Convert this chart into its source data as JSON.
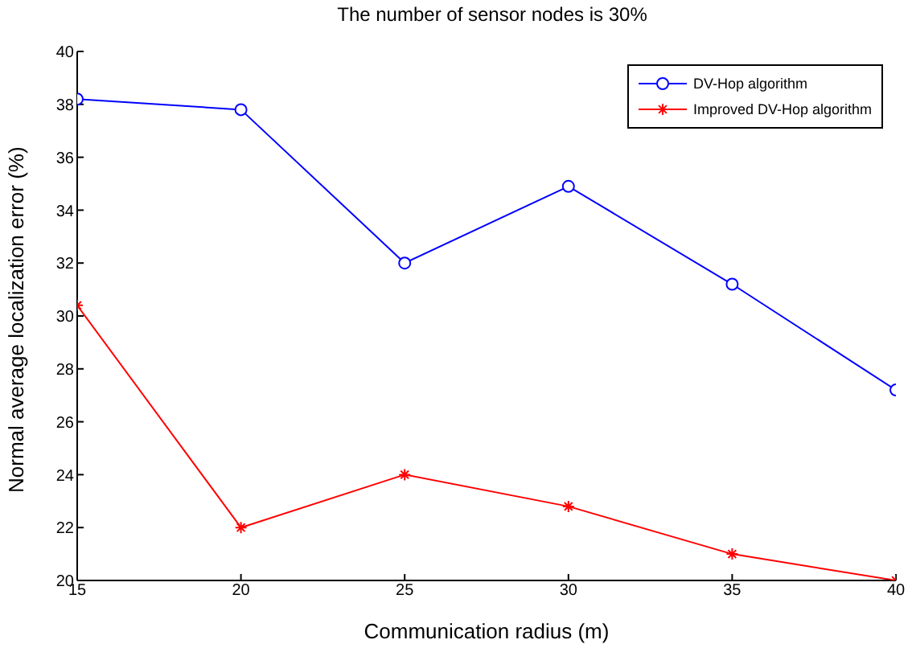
{
  "chart_data": {
    "type": "line",
    "title": "The number of sensor nodes is 30%",
    "xlabel": "Communication radius (m)",
    "ylabel": "Normal average localization error (%)",
    "x": [
      15,
      20,
      25,
      30,
      35,
      40
    ],
    "series": [
      {
        "name": "DV-Hop algorithm",
        "color": "#0000ff",
        "marker": "circle",
        "values": [
          38.2,
          37.8,
          32.0,
          34.9,
          31.2,
          27.2
        ]
      },
      {
        "name": "Improved DV-Hop algorithm",
        "color": "#ff0000",
        "marker": "cross",
        "values": [
          30.4,
          22.0,
          24.0,
          22.8,
          21.0,
          20.0
        ]
      }
    ],
    "xlim": [
      15,
      40
    ],
    "xticks": [
      15,
      20,
      25,
      30,
      35,
      40
    ],
    "ylim": [
      20,
      40
    ],
    "yticks": [
      20,
      22,
      24,
      26,
      28,
      30,
      32,
      34,
      36,
      38,
      40
    ],
    "legend": "top right",
    "line_style": "solid"
  }
}
